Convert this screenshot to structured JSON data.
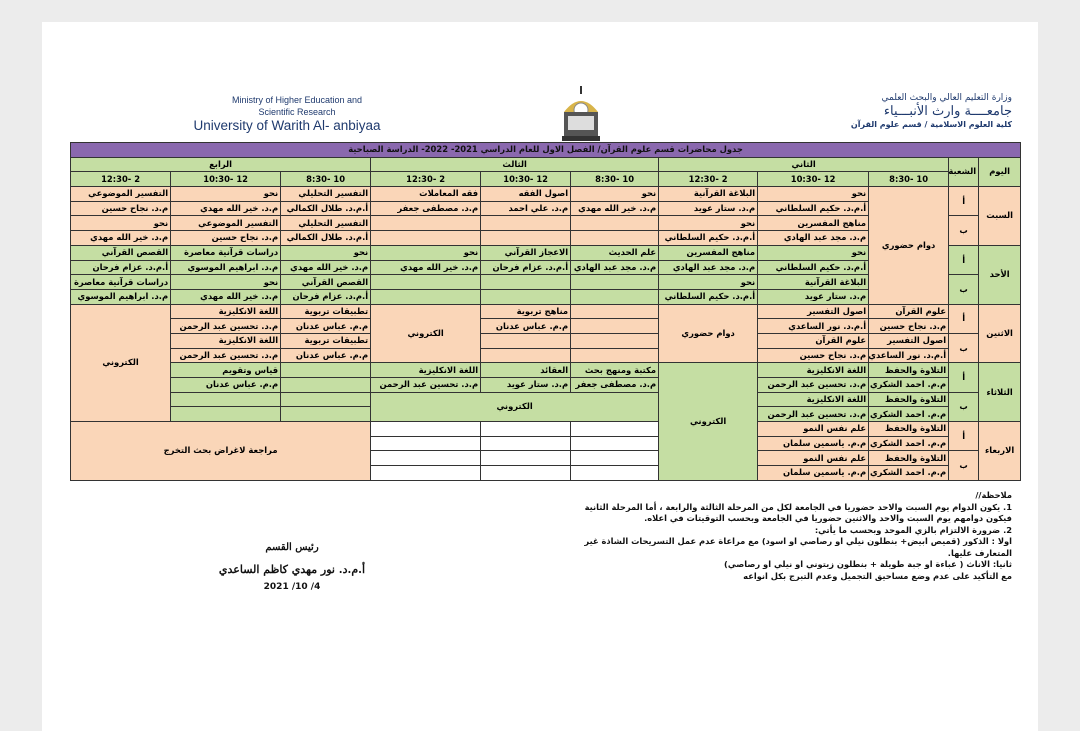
{
  "header": {
    "en_ministry_1": "Ministry of Higher Education and",
    "en_ministry_2": "Scientific Research",
    "en_university": "University of Warith Al- anbiyaa",
    "ar_ministry": "وزارة التعليم العالي والبحث العلمي",
    "ar_university": "جامعــــة وارث الأنبـــياء",
    "ar_college": "كلية العلوم الاسلامية / قسم علوم القرآن",
    "logo": "university-logo"
  },
  "colors": {
    "title": "#8a68ae",
    "green": "#c5dea3",
    "peach": "#fad6b8"
  },
  "schedule": {
    "title": "جدول محاضرات قسم علوم القرآن/ الفصل الاول للعام الدراسي 2021- 2022- الدراسة الصباحية",
    "day_label": "اليوم",
    "section_label": "الشعبة",
    "years": [
      "الثاني",
      "الثالث",
      "الرابع"
    ],
    "times": [
      "10 -8:30",
      "12 -10:30",
      "2 -12:30"
    ],
    "days": [
      {
        "name": "السبت",
        "color": "peach",
        "sections": [
          "أ",
          "ب"
        ],
        "y2": [
          "دوام حضوري",
          [
            "نحو",
            "أ.م.د. حكيم السلطاني",
            "مناهج المفسرين",
            "م.د. مجد عبد الهادي"
          ],
          [
            "البلاغة القرآنية",
            "م.د. ستار عويد",
            "نحو",
            "أ.م.د. حكيم السلطاني"
          ]
        ],
        "y3": [
          [
            "نحو",
            "م.د. خير الله مهدي",
            "",
            ""
          ],
          [
            "اصول الفقه",
            "م.د. علي احمد",
            "",
            ""
          ],
          [
            "فقه المعاملات",
            "م.د. مصطفى جعفر",
            "",
            ""
          ]
        ],
        "y4": [
          [
            "التفسير التحليلي",
            "أ.م.د. طلال الكمالي",
            "التفسير التحليلي",
            "أ.م.د. طلال الكمالي"
          ],
          [
            "نحو",
            "م.د. خير الله مهدي",
            "التفسير الموضوعي",
            "م.د. نجاح حسين"
          ],
          [
            "التفسير الموضوعي",
            "م.د. نجاح حسين",
            "نحو",
            "م.د. خير الله مهدي"
          ]
        ]
      },
      {
        "name": "الأحد",
        "color": "green",
        "sections": [
          "أ",
          "ب"
        ],
        "y2": [
          null,
          [
            "نحو",
            "أ.م.د. حكيم السلطاني",
            "البلاغة القرآنية",
            "م.د. ستار عويد"
          ],
          [
            "مناهج المفسرين",
            "م.د. مجد عبد الهادي",
            "نحو",
            "أ.م.د. حكيم السلطاني"
          ]
        ],
        "y3": [
          [
            "علم الحديث",
            "م.د. مجد عبد الهادي",
            "",
            ""
          ],
          [
            "الاعجاز القرآني",
            "أ.م.د. عزام فرحان",
            "",
            ""
          ],
          [
            "نحو",
            "م.د. خير الله مهدي",
            "",
            ""
          ]
        ],
        "y4": [
          [
            "نحو",
            "م.د. خير الله مهدي",
            "القصص القرآني",
            "أ.م.د. عزام فرحان"
          ],
          [
            "دراسات قرآنية معاصرة",
            "م.د. ابراهيم الموسوي",
            "نحو",
            "م.د. خير الله مهدي"
          ],
          [
            "القصص القرآني",
            "أ.م.د. عزام فرحان",
            "دراسات قرآنية معاصرة",
            "م.د. ابراهيم الموسوي"
          ]
        ]
      },
      {
        "name": "الاثنين",
        "color": "peach",
        "sections": [
          "أ",
          "ب"
        ],
        "y2": [
          [
            "علوم القرآن",
            "م.د. نجاح حسين",
            "اصول التفسير",
            "أ.م.د. نور الساعدي"
          ],
          [
            "اصول التفسير",
            "أ.م.د. نور الساعدي",
            "علوم القرآن",
            "م.د. نجاح حسين"
          ],
          "دوام حضوري"
        ],
        "y3": [
          [
            "",
            "",
            "",
            ""
          ],
          [
            "مناهج تربوية",
            "م.م. عباس عدنان",
            "",
            ""
          ],
          "الكتروني"
        ],
        "y4": [
          [
            "تطبيقات تربوية",
            "م.م. عباس عدنان",
            "تطبيقات تربوية",
            "م.م. عباس عدنان"
          ],
          [
            "اللغة الانكليزية",
            "م.د. تحسين عبد الرحمن",
            "اللغة الانكليزية",
            "م.د. تحسين عبد الرحمن"
          ],
          "الكتروني"
        ]
      },
      {
        "name": "الثلاثاء",
        "color": "green",
        "sections": [
          "أ",
          "ب"
        ],
        "y2": [
          [
            "التلاوة والحفظ",
            "م.م. احمد الشكري",
            "التلاوة والحفظ",
            "م.م. احمد الشكري"
          ],
          [
            "اللغة الانكليزية",
            "م.د. تحسين عبد الرحمن",
            "اللغة الانكليزية",
            "م.د. تحسين عبد الرحمن"
          ],
          "الكتروني"
        ],
        "y3": [
          [
            "مكتبة ومنهج بحث",
            "م.د. مصطفى جعفر"
          ],
          [
            "العقائد",
            "م.د. ستار عويد"
          ],
          [
            "اللغة الانكليزية",
            "م.د. تحسين عبد الرحمن"
          ]
        ],
        "y3_b": "الكتروني",
        "y4": [
          [
            "",
            "",
            "",
            ""
          ],
          [
            "قياس وتقويم",
            "م.م. عباس عدنان",
            "",
            ""
          ],
          null
        ]
      },
      {
        "name": "الاربعاء",
        "color": "peach",
        "sections": [
          "أ",
          "ب"
        ],
        "y2": [
          [
            "التلاوة والحفظ",
            "م.م. احمد الشكري",
            "التلاوة والحفظ",
            "م.م. احمد الشكري"
          ],
          [
            "علم نفس النمو",
            "م.م. ياسمين سلمان",
            "علم نفس النمو",
            "م.م. ياسمين سلمان"
          ],
          null
        ],
        "y3": [
          [
            "",
            "",
            "",
            ""
          ],
          [
            "",
            "",
            "",
            ""
          ],
          [
            "",
            "",
            "",
            ""
          ]
        ],
        "y4": [
          "مراجعة لاغراض بحث التخرج",
          null,
          null
        ]
      }
    ]
  },
  "notes": {
    "heading": "ملاحظة//",
    "lines": [
      "1. يكون الدوام يوم السبت والاحد  حضوريا في الجامعة لكل من المرحلة الثالثة والرابعة ، أما المرحلة الثانية",
      "فيكون دوامهم يوم السبت والاحد والاثنين حضوريا في الجامعة وبحسب التوقيتات في اعلاه.",
      "2. ضرورة الالتزام بالزي الموحد وبحسب ما يأتي:",
      "اولا : الذكور (قميص ابيض+ بنطلون نيلي او رصاصي او اسود) مع مراعاة عدم عمل التسريحات الشاذة غير",
      "المتعارف عليها.",
      "ثانيا: الاناث ( عباءة او جبة طويلة + بنطلون زيتوني او نيلي او رصاصي)",
      "مع التأكيد على عدم وضع مساحيق التجميل وعدم التبرج بكل انواعه"
    ]
  },
  "signature": {
    "role": "رئيس القسم",
    "name": "أ.م.د. نور مهدي كاظم الساعدي",
    "date": "2021 /10 /4"
  }
}
